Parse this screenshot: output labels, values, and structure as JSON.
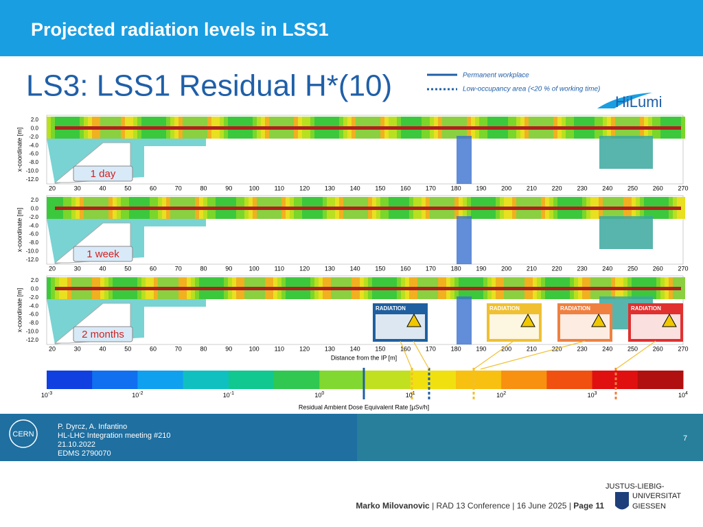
{
  "header": {
    "title": "Projected radiation levels in LSS1"
  },
  "figure": {
    "title": "LS3: LSS1 Residual H*(10)",
    "legend": [
      "Permanent workplace",
      "Low-occupancy area (<20 % of working time)"
    ],
    "logo": "HiLumi",
    "y_axis_label": "x-coordinate [m]",
    "y_ticks": [
      "2.0",
      "0.0",
      "-2.0",
      "-4.0",
      "-6.0",
      "-8.0",
      "-10.0",
      "-12.0"
    ],
    "x_ticks": [
      20,
      30,
      40,
      50,
      60,
      70,
      80,
      90,
      100,
      110,
      120,
      130,
      140,
      150,
      160,
      170,
      180,
      190,
      200,
      210,
      220,
      230,
      240,
      250,
      260,
      270
    ],
    "x_axis_label": "Distance from the IP [m]",
    "panels": [
      "1 day",
      "1 week",
      "2 months"
    ],
    "signs": [
      "RADIATION",
      "RADIATION",
      "RADIATION",
      "RADIATION"
    ],
    "colorbar": {
      "ticks": [
        {
          "base": "10",
          "exp": "-3"
        },
        {
          "base": "10",
          "exp": "-2"
        },
        {
          "base": "10",
          "exp": "-1"
        },
        {
          "base": "10",
          "exp": "0"
        },
        {
          "base": "10",
          "exp": "1"
        },
        {
          "base": "10",
          "exp": "2"
        },
        {
          "base": "10",
          "exp": "3"
        },
        {
          "base": "10",
          "exp": "4"
        }
      ],
      "label": "Residual Ambient Dose Equivalent Rate [µSv/h]"
    }
  },
  "banner": {
    "logo": "CERN",
    "lines": [
      "P. Dyrcz, A. Infantino",
      "HL-LHC Integration meeting #210",
      "21.10.2022",
      "EDMS  2790070"
    ],
    "page": "7"
  },
  "footer": {
    "author": "Marko Milovanovic",
    "separator": "|",
    "event": "RAD 13 Conference",
    "date": "16 June 2025",
    "page": "Page 11",
    "university": [
      "JUSTUS-LIEBIG-",
      "UNIVERSITAT",
      "GIESSEN"
    ]
  }
}
